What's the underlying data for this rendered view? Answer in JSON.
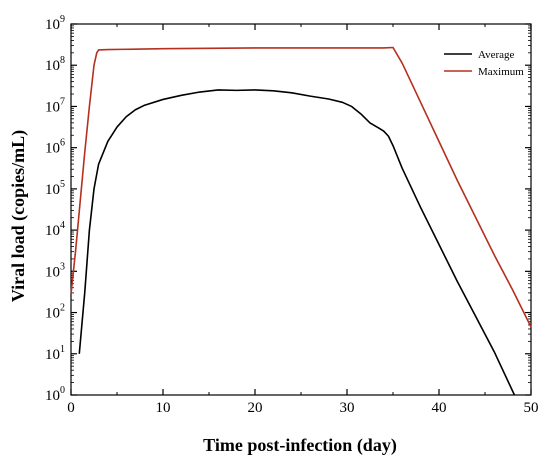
{
  "chart_data": {
    "type": "line",
    "title": "",
    "xlabel": "Time post-infection (day)",
    "ylabel": "Viral load (copies/mL)",
    "xlim": [
      0,
      50
    ],
    "ylim_log10": [
      0,
      9
    ],
    "yscale": "log",
    "grid": false,
    "legend_position": "top-right",
    "x_ticks": [
      "0",
      "10",
      "20",
      "30",
      "40",
      "50"
    ],
    "y_ticks": [
      {
        "base": "10",
        "exp": "0"
      },
      {
        "base": "10",
        "exp": "1"
      },
      {
        "base": "10",
        "exp": "2"
      },
      {
        "base": "10",
        "exp": "3"
      },
      {
        "base": "10",
        "exp": "4"
      },
      {
        "base": "10",
        "exp": "5"
      },
      {
        "base": "10",
        "exp": "6"
      },
      {
        "base": "10",
        "exp": "7"
      },
      {
        "base": "10",
        "exp": "8"
      },
      {
        "base": "10",
        "exp": "9"
      }
    ],
    "series": [
      {
        "name": "Average",
        "color": "#000000",
        "points": [
          [
            0.9,
            1.0
          ],
          [
            1.5,
            2.5
          ],
          [
            2.0,
            4.0
          ],
          [
            2.5,
            5.0
          ],
          [
            3.0,
            5.6
          ],
          [
            4.0,
            6.15
          ],
          [
            5.0,
            6.5
          ],
          [
            6.0,
            6.75
          ],
          [
            7.0,
            6.92
          ],
          [
            8.0,
            7.03
          ],
          [
            10.0,
            7.17
          ],
          [
            12.0,
            7.27
          ],
          [
            14.0,
            7.35
          ],
          [
            16.0,
            7.4
          ],
          [
            18.0,
            7.39
          ],
          [
            20.0,
            7.4
          ],
          [
            22.0,
            7.38
          ],
          [
            24.0,
            7.33
          ],
          [
            26.0,
            7.25
          ],
          [
            28.0,
            7.18
          ],
          [
            29.5,
            7.1
          ],
          [
            30.5,
            7.0
          ],
          [
            31.5,
            6.82
          ],
          [
            32.5,
            6.6
          ],
          [
            33.5,
            6.47
          ],
          [
            34.0,
            6.4
          ],
          [
            34.5,
            6.28
          ],
          [
            35.0,
            6.05
          ],
          [
            36.0,
            5.5
          ],
          [
            38.0,
            4.55
          ],
          [
            40.0,
            3.65
          ],
          [
            42.0,
            2.75
          ],
          [
            44.0,
            1.9
          ],
          [
            46.0,
            1.05
          ],
          [
            48.2,
            0.0
          ]
        ]
      },
      {
        "name": "Maximum",
        "color": "#b5301f",
        "points": [
          [
            0.0,
            2.45
          ],
          [
            0.5,
            3.5
          ],
          [
            1.0,
            4.7
          ],
          [
            1.5,
            5.9
          ],
          [
            2.0,
            7.0
          ],
          [
            2.5,
            8.0
          ],
          [
            2.8,
            8.3
          ],
          [
            3.0,
            8.37
          ],
          [
            4.0,
            8.38
          ],
          [
            10.0,
            8.4
          ],
          [
            20.0,
            8.42
          ],
          [
            30.0,
            8.42
          ],
          [
            34.0,
            8.42
          ],
          [
            35.0,
            8.43
          ],
          [
            36.0,
            8.05
          ],
          [
            38.0,
            7.1
          ],
          [
            40.0,
            6.15
          ],
          [
            42.0,
            5.2
          ],
          [
            44.0,
            4.3
          ],
          [
            46.0,
            3.4
          ],
          [
            48.0,
            2.55
          ],
          [
            50.0,
            1.65
          ]
        ]
      }
    ]
  }
}
